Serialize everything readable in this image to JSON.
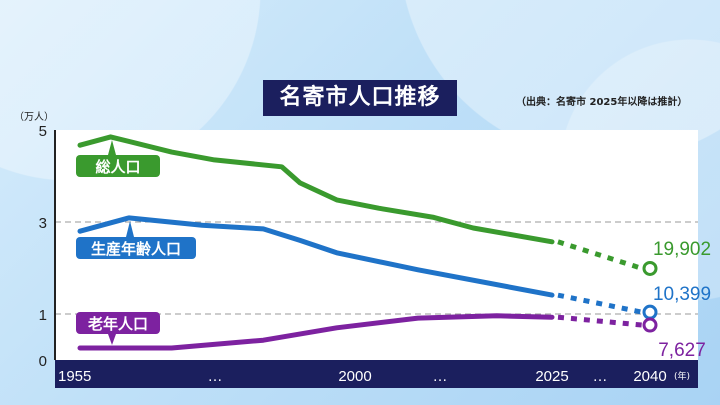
{
  "chart_data": {
    "type": "line",
    "title": "名寄市人口推移",
    "source_note": "（出典：名寄市 2025年以降は推計）",
    "ylabel": "（万人）",
    "ylim": [
      0,
      5
    ],
    "yticks": [
      "0",
      "1",
      "3",
      "5"
    ],
    "ytick_values": [
      0,
      1,
      3,
      5
    ],
    "xtick_labels": [
      "1955",
      "…",
      "2000",
      "…",
      "2025",
      "…",
      "2040"
    ],
    "xunit": "(年)",
    "projection_start": 2025,
    "series": [
      {
        "name": "総人口",
        "color": "#3a9a2e",
        "x": [
          1955,
          1960,
          1970,
          1977,
          1988,
          1991,
          1997,
          2003,
          2010,
          2015,
          2025,
          2040
        ],
        "values": [
          4.67,
          4.85,
          4.52,
          4.35,
          4.2,
          3.85,
          3.48,
          3.3,
          3.1,
          2.87,
          2.57,
          1.99
        ],
        "end_label": "19,902"
      },
      {
        "name": "生産年齢人口",
        "color": "#1f73c8",
        "x": [
          1955,
          1963,
          1975,
          1985,
          1991,
          1997,
          2008,
          2025,
          2040
        ],
        "values": [
          2.8,
          3.09,
          2.93,
          2.85,
          2.6,
          2.33,
          1.96,
          1.41,
          1.04
        ],
        "end_label": "10,399"
      },
      {
        "name": "老年人口",
        "color": "#7d22a0",
        "x": [
          1955,
          1970,
          1985,
          1997,
          2008,
          2018,
          2025,
          2040
        ],
        "values": [
          0.26,
          0.26,
          0.43,
          0.7,
          0.91,
          0.96,
          0.93,
          0.76
        ],
        "end_label": "7,627"
      }
    ]
  }
}
